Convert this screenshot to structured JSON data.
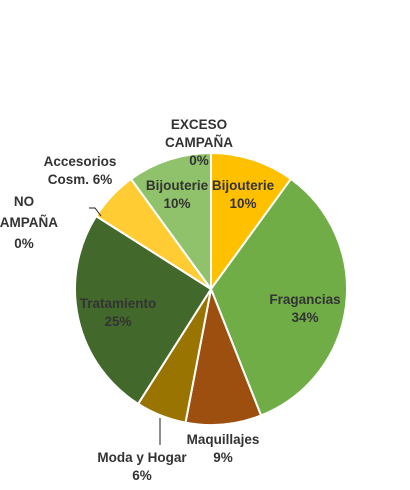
{
  "chart_data": {
    "type": "pie",
    "start": "12 o'clock, clockwise",
    "slices": [
      {
        "label": "Bijouterie",
        "value": 10,
        "color": "#ffc000",
        "label_color": "#333333"
      },
      {
        "label": "Fragancias",
        "value": 34,
        "color": "#70ad47",
        "label_color": "#333333"
      },
      {
        "label": "Maquillajes",
        "value": 9,
        "color": "#9c4f0e",
        "label_color": "#333333"
      },
      {
        "label": "Moda y Hogar",
        "value": 6,
        "color": "#9a7400",
        "label_color": "#333333"
      },
      {
        "label": "Tratamiento",
        "value": 25,
        "color": "#43682b",
        "label_color": "#333333"
      },
      {
        "label": "NO CAMPAÑA",
        "value": 0,
        "color": "#43682b",
        "label_color": "#333333"
      },
      {
        "label": "Accesorios Cosm.",
        "value": 6,
        "color": "#ffcd33",
        "label_color": "#333333"
      },
      {
        "label": "Bijouterie",
        "value": 10,
        "color": "#8fc26a",
        "label_color": "#333333"
      },
      {
        "label": "EXCESO CAMPAÑA",
        "value": 0,
        "color": "#8fc26a",
        "label_color": "#333333"
      }
    ],
    "data_labels": [
      "Bijouterie 10%",
      "Fragancias 34%",
      "Maquillajes 9%",
      "Moda y Hogar 6%",
      "Tratamiento 25%",
      "NO CAMPAÑA 0%",
      "Accesorios Cosm. 6%",
      "Bijouterie 10%",
      "EXCESO CAMPAÑA 0%"
    ]
  }
}
